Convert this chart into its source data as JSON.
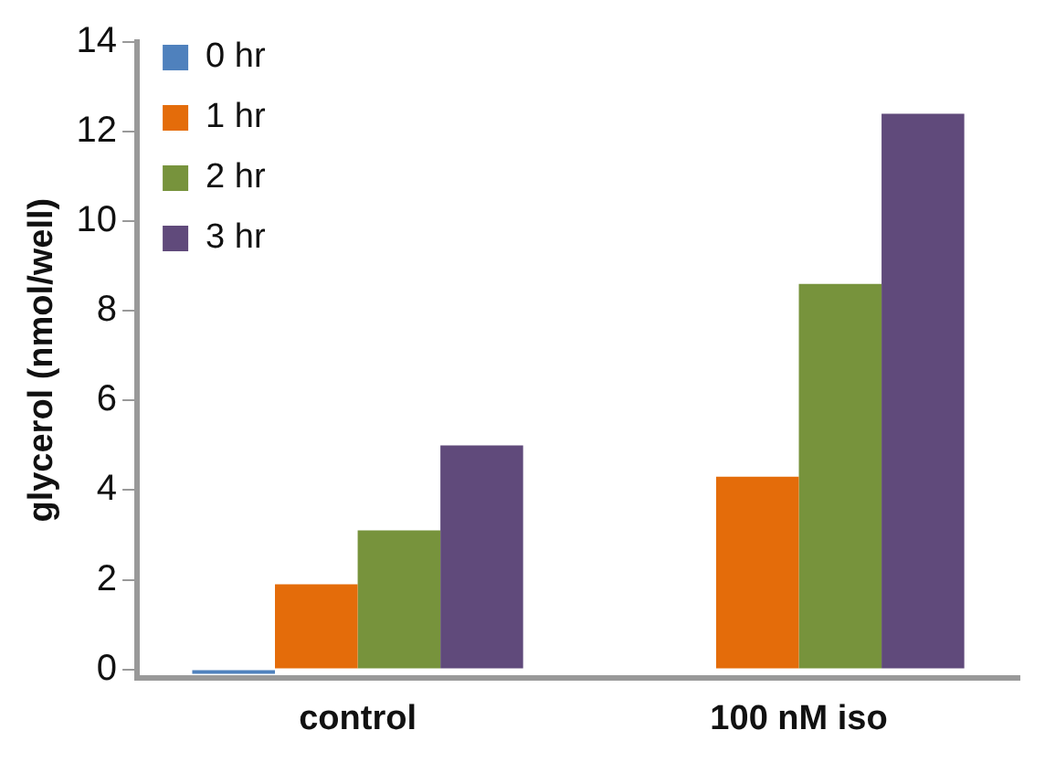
{
  "chart_data": {
    "type": "bar",
    "ylabel": "glycerol (nmol/well)",
    "categories": [
      "control",
      "100 nM iso"
    ],
    "series": [
      {
        "name": "0 hr",
        "color": "#4f81bd",
        "values": [
          -0.1,
          0
        ]
      },
      {
        "name": "1 hr",
        "color": "#e46c0a",
        "values": [
          1.9,
          4.3
        ]
      },
      {
        "name": "2 hr",
        "color": "#77933c",
        "values": [
          3.1,
          8.6
        ]
      },
      {
        "name": "3 hr",
        "color": "#604a7b",
        "values": [
          5.0,
          12.4
        ]
      }
    ],
    "ylim": [
      -0.2,
      14
    ],
    "yticks": [
      0,
      2,
      4,
      6,
      8,
      10,
      12,
      14
    ],
    "grid": false,
    "legend": "top left"
  }
}
